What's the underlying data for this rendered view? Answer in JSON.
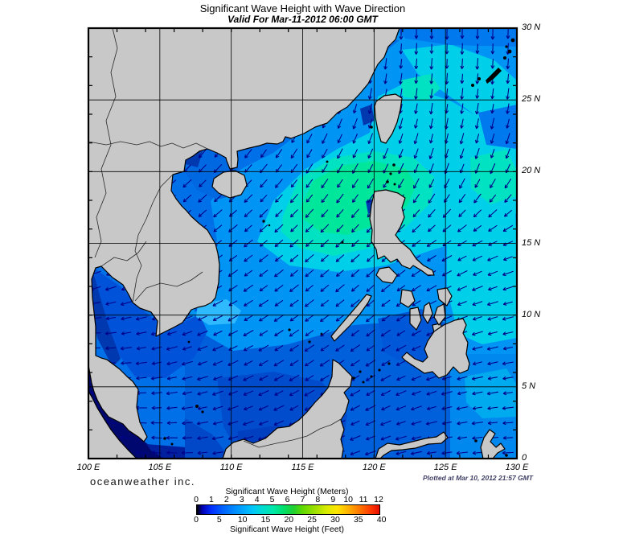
{
  "header": {
    "title": "Significant Wave Height with Wave Direction",
    "subtitle": "Valid For Mar-11-2012 06:00 GMT"
  },
  "footer": {
    "credit": "oceanweather inc.",
    "plotted": "Plotted at Mar 10, 2012 21:57 GMT"
  },
  "axes": {
    "lon_labels": [
      "100 E",
      "105 E",
      "110 E",
      "115 E",
      "120 E",
      "125 E",
      "130 E"
    ],
    "lon_values": [
      100,
      105,
      110,
      115,
      120,
      125,
      130
    ],
    "lat_labels": [
      "30 N",
      "25 N",
      "20 N",
      "15 N",
      "10 N",
      "5 N",
      "0"
    ],
    "lat_values": [
      30,
      25,
      20,
      15,
      10,
      5,
      0
    ],
    "grid_interval_deg": 5,
    "tick_interval_deg": 2
  },
  "legend": {
    "meters_label": "Significant Wave Height (Meters)",
    "meters_ticks": [
      "0",
      "1",
      "2",
      "3",
      "4",
      "5",
      "6",
      "7",
      "8",
      "9",
      "10",
      "11",
      "12"
    ],
    "meters_range": [
      0,
      12
    ],
    "feet_label": "Significant Wave Height (Feet)",
    "feet_ticks": [
      "0",
      "5",
      "10",
      "15",
      "20",
      "25",
      "30",
      "35",
      "40"
    ],
    "feet_range": [
      0,
      40
    ],
    "colormap_stops": [
      [
        0,
        "#000000"
      ],
      [
        0.03,
        "#0000B4"
      ],
      [
        0.08,
        "#0030FF"
      ],
      [
        0.14,
        "#0060FF"
      ],
      [
        0.2,
        "#0088FF"
      ],
      [
        0.26,
        "#00AAFF"
      ],
      [
        0.31,
        "#00C8F8"
      ],
      [
        0.36,
        "#00DCD0"
      ],
      [
        0.42,
        "#00E8A8"
      ],
      [
        0.47,
        "#00E070"
      ],
      [
        0.53,
        "#20D030"
      ],
      [
        0.58,
        "#60D800"
      ],
      [
        0.65,
        "#A0E000"
      ],
      [
        0.71,
        "#D8EC00"
      ],
      [
        0.77,
        "#FFE400"
      ],
      [
        0.83,
        "#FFB000"
      ],
      [
        0.89,
        "#FF7800"
      ],
      [
        0.95,
        "#FF3C00"
      ],
      [
        1,
        "#E60C00"
      ]
    ]
  },
  "map": {
    "lon_range": [
      100,
      130
    ],
    "lat_range": [
      0,
      30
    ]
  },
  "chart_data": {
    "type": "heatmap",
    "title": "Significant Wave Height with Wave Direction",
    "valid_time": "Mar-11-2012 06:00 GMT",
    "units_primary": "meters",
    "units_secondary": "feet",
    "height_scale_m": [
      0,
      12
    ],
    "wave_direction_toward_deg": {
      "lons": [
        100,
        105,
        110,
        115,
        120,
        125,
        130
      ],
      "lats": [
        30,
        25,
        20,
        15,
        10,
        5,
        0
      ],
      "grid": [
        [
          200,
          200,
          195,
          190,
          182,
          180,
          182
        ],
        [
          210,
          208,
          206,
          202,
          192,
          186,
          188
        ],
        [
          228,
          226,
          224,
          215,
          208,
          200,
          206
        ],
        [
          238,
          234,
          232,
          228,
          226,
          238,
          248
        ],
        [
          265,
          252,
          240,
          233,
          231,
          247,
          257
        ],
        [
          275,
          263,
          247,
          239,
          240,
          254,
          263
        ],
        [
          283,
          277,
          258,
          247,
          252,
          263,
          268
        ]
      ]
    }
  },
  "colors": {
    "land": "#c8c8c8",
    "coastline": "#000000",
    "arrow": "#000088",
    "grid": "#000000",
    "sea_base": "#0070E8",
    "plotted_text": "#3f3f66"
  }
}
